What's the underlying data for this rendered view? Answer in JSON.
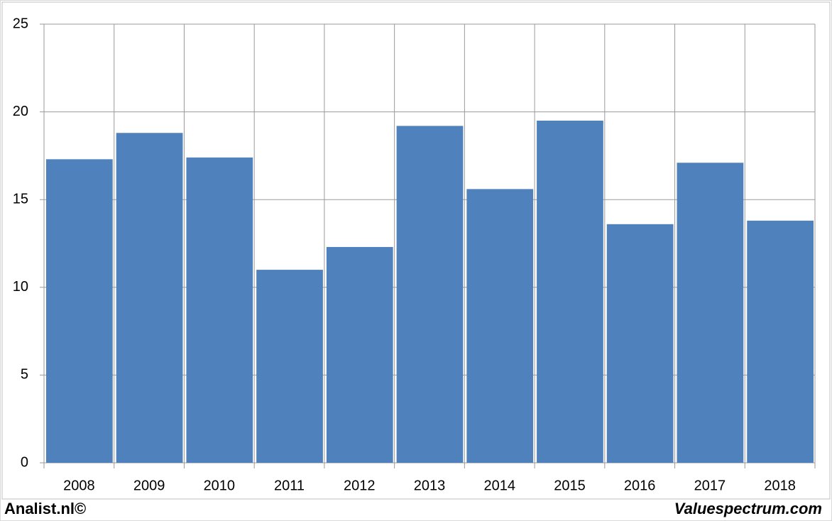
{
  "chart_data": {
    "type": "bar",
    "categories": [
      "2008",
      "2009",
      "2010",
      "2011",
      "2012",
      "2013",
      "2014",
      "2015",
      "2016",
      "2017",
      "2018"
    ],
    "values": [
      17.3,
      18.8,
      17.4,
      11.0,
      12.3,
      19.2,
      15.6,
      19.5,
      13.6,
      17.1,
      13.8
    ],
    "color": "#4f81bd",
    "ylim": [
      0,
      25
    ],
    "yticks": [
      0,
      5,
      10,
      15,
      20,
      25
    ],
    "grid": true,
    "footer_left": "Analist.nl©",
    "footer_right": "Valuespectrum.com"
  }
}
